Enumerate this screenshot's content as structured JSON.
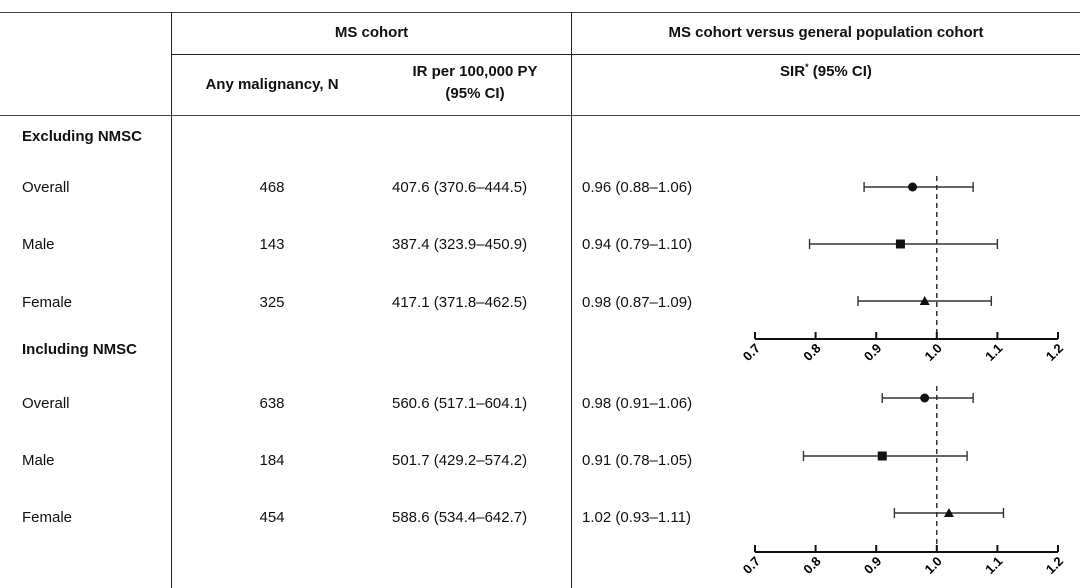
{
  "headers": {
    "ms_cohort": "MS cohort",
    "comparison": "MS cohort versus general population cohort",
    "any_malignancy": "Any malignancy, N",
    "ir_line1": "IR per 100,000 PY",
    "ir_line2": "(95% CI)",
    "sir": "SIR",
    "sir_sup": "*",
    "sir_ci": " (95% CI)"
  },
  "sections": [
    {
      "title": "Excluding NMSC",
      "rows": [
        {
          "label": "Overall",
          "n": "468",
          "ir": "407.6 (370.6–444.5)",
          "sir": "0.96 (0.88–1.06)"
        },
        {
          "label": "Male",
          "n": "143",
          "ir": "387.4 (323.9–450.9)",
          "sir": "0.94 (0.79–1.10)"
        },
        {
          "label": "Female",
          "n": "325",
          "ir": "417.1 (371.8–462.5)",
          "sir": "0.98 (0.87–1.09)"
        }
      ]
    },
    {
      "title": "Including NMSC",
      "rows": [
        {
          "label": "Overall",
          "n": "638",
          "ir": "560.6 (517.1–604.1)",
          "sir": "0.98 (0.91–1.06)"
        },
        {
          "label": "Male",
          "n": "184",
          "ir": "501.7 (429.2–574.2)",
          "sir": "0.91 (0.78–1.05)"
        },
        {
          "label": "Female",
          "n": "454",
          "ir": "588.6 (534.4–642.7)",
          "sir": "1.02 (0.93–1.11)"
        }
      ]
    }
  ],
  "chart_data": [
    {
      "type": "scatter",
      "subtype": "forest",
      "panel": "Excluding NMSC",
      "xlim": [
        0.7,
        1.2
      ],
      "x_ticks": [
        "0.7",
        "0.8",
        "0.9",
        "1.0",
        "1.1",
        "1.2"
      ],
      "reference_line": 1.0,
      "categories": [
        "Overall",
        "Male",
        "Female"
      ],
      "points": [
        {
          "label": "Overall",
          "estimate": 0.96,
          "lower": 0.88,
          "upper": 1.06,
          "marker": "circle"
        },
        {
          "label": "Male",
          "estimate": 0.94,
          "lower": 0.79,
          "upper": 1.1,
          "marker": "square"
        },
        {
          "label": "Female",
          "estimate": 0.98,
          "lower": 0.87,
          "upper": 1.09,
          "marker": "triangle"
        }
      ]
    },
    {
      "type": "scatter",
      "subtype": "forest",
      "panel": "Including NMSC",
      "xlim": [
        0.7,
        1.2
      ],
      "x_ticks": [
        "0.7",
        "0.8",
        "0.9",
        "1.0",
        "1.1",
        "1.2"
      ],
      "reference_line": 1.0,
      "categories": [
        "Overall",
        "Male",
        "Female"
      ],
      "points": [
        {
          "label": "Overall",
          "estimate": 0.98,
          "lower": 0.91,
          "upper": 1.06,
          "marker": "circle"
        },
        {
          "label": "Male",
          "estimate": 0.91,
          "lower": 0.78,
          "upper": 1.05,
          "marker": "square"
        },
        {
          "label": "Female",
          "estimate": 1.02,
          "lower": 0.93,
          "upper": 1.11,
          "marker": "triangle"
        }
      ]
    }
  ]
}
